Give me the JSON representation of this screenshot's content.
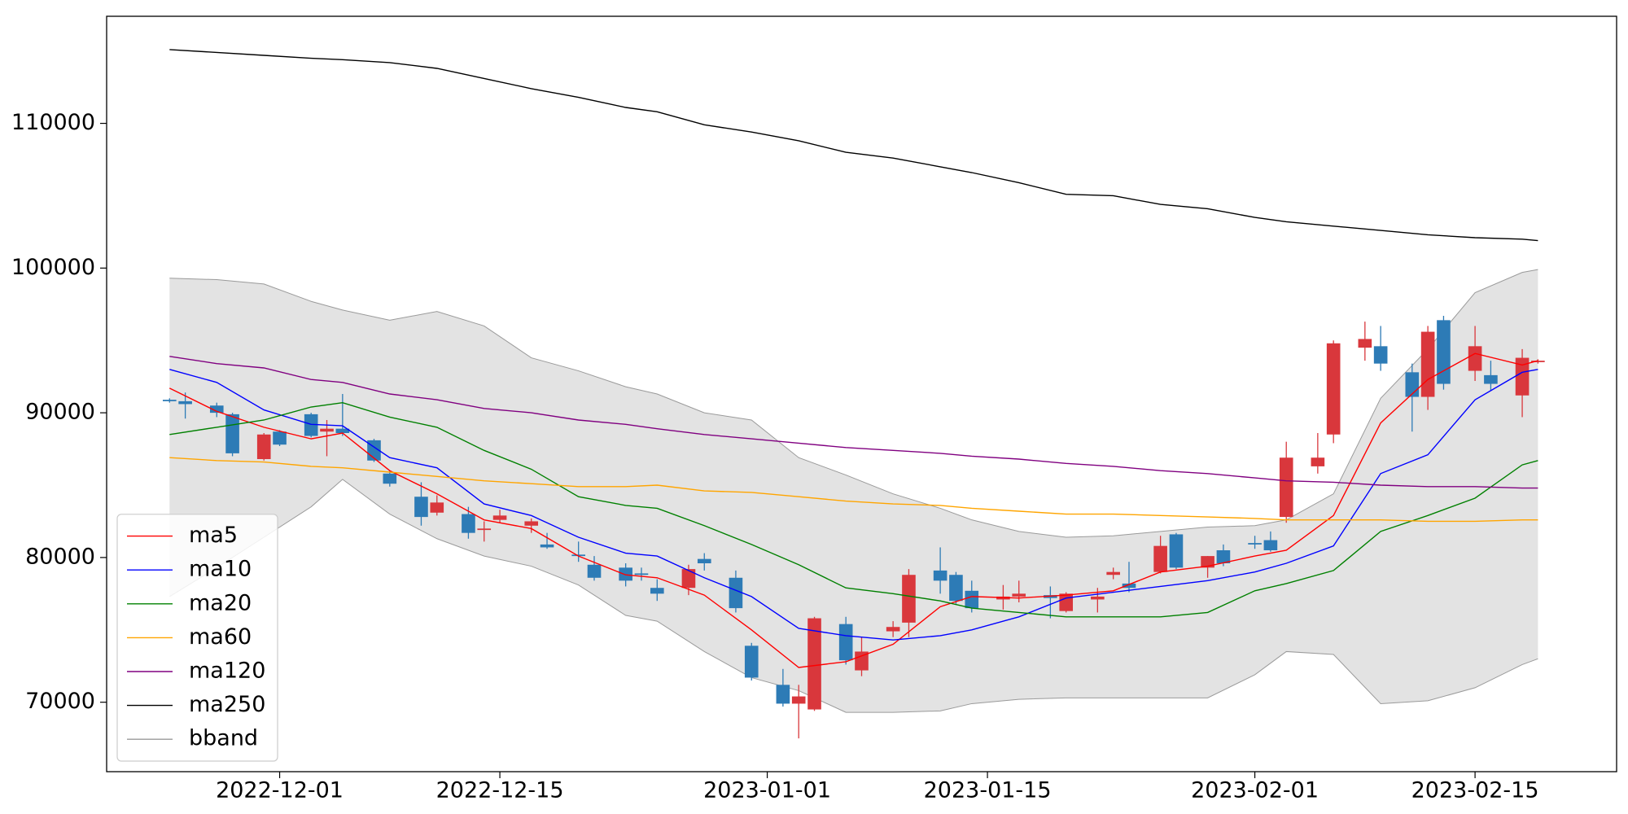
{
  "chart_data": {
    "type": "candlestick",
    "x": [
      "2022-11-24",
      "2022-11-25",
      "2022-11-27",
      "2022-11-28",
      "2022-11-30",
      "2022-12-01",
      "2022-12-03",
      "2022-12-04",
      "2022-12-05",
      "2022-12-07",
      "2022-12-08",
      "2022-12-10",
      "2022-12-11",
      "2022-12-13",
      "2022-12-14",
      "2022-12-15",
      "2022-12-17",
      "2022-12-18",
      "2022-12-20",
      "2022-12-21",
      "2022-12-23",
      "2022-12-24",
      "2022-12-25",
      "2022-12-27",
      "2022-12-28",
      "2022-12-30",
      "2022-12-31",
      "2023-01-02",
      "2023-01-03",
      "2023-01-04",
      "2023-01-06",
      "2023-01-07",
      "2023-01-09",
      "2023-01-10",
      "2023-01-12",
      "2023-01-13",
      "2023-01-14",
      "2023-01-16",
      "2023-01-17",
      "2023-01-19",
      "2023-01-20",
      "2023-01-22",
      "2023-01-23",
      "2023-01-24",
      "2023-01-26",
      "2023-01-27",
      "2023-01-29",
      "2023-01-30",
      "2023-02-01",
      "2023-02-02",
      "2023-02-03",
      "2023-02-05",
      "2023-02-06",
      "2023-02-08",
      "2023-02-09",
      "2023-02-11",
      "2023-02-12",
      "2023-02-13",
      "2023-02-15",
      "2023-02-16",
      "2023-02-18",
      "2023-02-19"
    ],
    "open": [
      90900,
      90800,
      90500,
      89900,
      86800,
      88700,
      89900,
      88700,
      88900,
      88100,
      85800,
      84200,
      83100,
      83000,
      81900,
      82600,
      82200,
      80900,
      80200,
      79500,
      79300,
      78900,
      77900,
      77900,
      79900,
      78600,
      73900,
      71200,
      69900,
      69500,
      75400,
      72200,
      74900,
      75500,
      79100,
      78800,
      77700,
      77100,
      77300,
      77400,
      76300,
      77100,
      78800,
      78200,
      79000,
      81600,
      79300,
      80500,
      81000,
      81200,
      82800,
      86300,
      88500,
      94500,
      94600,
      92800,
      91100,
      96400,
      92900,
      92600,
      91200,
      93500
    ],
    "high": [
      91000,
      91400,
      90700,
      90000,
      88600,
      88800,
      90000,
      89500,
      91300,
      88200,
      86000,
      85200,
      84300,
      83500,
      82500,
      83300,
      82700,
      81700,
      81100,
      80100,
      79600,
      79300,
      78500,
      79500,
      80300,
      79100,
      74100,
      72300,
      71200,
      75900,
      75900,
      74500,
      75600,
      79200,
      80700,
      79000,
      78400,
      78100,
      78400,
      78000,
      77600,
      77900,
      79300,
      79700,
      81500,
      81700,
      80100,
      80900,
      81500,
      81800,
      88000,
      88600,
      95000,
      96300,
      96000,
      93400,
      96000,
      96700,
      96000,
      93600,
      94400,
      93700
    ],
    "low": [
      90700,
      89600,
      89700,
      87000,
      86700,
      87700,
      88300,
      87000,
      88400,
      86600,
      84900,
      82200,
      82900,
      81300,
      81100,
      82400,
      81700,
      80600,
      79700,
      78400,
      78000,
      78400,
      77000,
      77400,
      79100,
      76200,
      71500,
      69700,
      67500,
      69400,
      72600,
      71800,
      74500,
      74500,
      77500,
      76800,
      76200,
      76400,
      76900,
      75800,
      76200,
      76200,
      78500,
      77600,
      78900,
      79200,
      78600,
      79400,
      80600,
      80400,
      82400,
      85800,
      87900,
      93600,
      92900,
      88700,
      90200,
      91600,
      92200,
      91500,
      89700,
      93400
    ],
    "close": [
      90800,
      90600,
      90000,
      87200,
      88500,
      87800,
      88400,
      88900,
      88600,
      86700,
      85100,
      82800,
      83800,
      81700,
      82000,
      82900,
      82500,
      80700,
      80100,
      78600,
      78400,
      78800,
      77500,
      79200,
      79600,
      76500,
      71700,
      69900,
      70400,
      75800,
      72900,
      73500,
      75200,
      78800,
      78400,
      77000,
      76500,
      77300,
      77500,
      77200,
      77500,
      77300,
      79000,
      77900,
      80800,
      79300,
      80100,
      79600,
      80900,
      80500,
      86900,
      86900,
      94800,
      95100,
      93400,
      91100,
      95600,
      92000,
      94600,
      92000,
      93800,
      93600
    ],
    "up_color": "#d9373c",
    "down_color": "#2d7bb6",
    "lines": {
      "x": [
        "2022-11-24",
        "2022-11-27",
        "2022-11-30",
        "2022-12-03",
        "2022-12-05",
        "2022-12-08",
        "2022-12-11",
        "2022-12-14",
        "2022-12-17",
        "2022-12-20",
        "2022-12-23",
        "2022-12-25",
        "2022-12-28",
        "2022-12-31",
        "2023-01-03",
        "2023-01-06",
        "2023-01-09",
        "2023-01-12",
        "2023-01-14",
        "2023-01-17",
        "2023-01-20",
        "2023-01-23",
        "2023-01-26",
        "2023-01-29",
        "2023-02-01",
        "2023-02-03",
        "2023-02-06",
        "2023-02-09",
        "2023-02-12",
        "2023-02-15",
        "2023-02-18",
        "2023-02-19"
      ],
      "series": [
        {
          "name": "ma5",
          "color": "#ff0000",
          "values": [
            91700,
            90100,
            89000,
            88200,
            88600,
            86000,
            84400,
            82600,
            82000,
            80100,
            78800,
            78600,
            77400,
            75000,
            72400,
            72800,
            74000,
            76600,
            77300,
            77200,
            77400,
            77700,
            79000,
            79400,
            80100,
            80500,
            82900,
            89300,
            92300,
            94100,
            93300,
            93600
          ]
        },
        {
          "name": "ma10",
          "color": "#0000ff",
          "values": [
            93000,
            92100,
            90200,
            89200,
            89100,
            86900,
            86200,
            83700,
            82900,
            81400,
            80300,
            80100,
            78600,
            77300,
            75100,
            74600,
            74300,
            74600,
            75000,
            75900,
            77200,
            77600,
            78000,
            78400,
            79000,
            79600,
            80800,
            85800,
            87100,
            90900,
            92800,
            93000
          ]
        },
        {
          "name": "ma20",
          "color": "#008000",
          "values": [
            88500,
            89000,
            89500,
            90400,
            90700,
            89700,
            89000,
            87400,
            86100,
            84200,
            83600,
            83400,
            82200,
            80900,
            79500,
            77900,
            77500,
            77000,
            76500,
            76200,
            75900,
            75900,
            75900,
            76200,
            77700,
            78200,
            79100,
            81800,
            82900,
            84100,
            86400,
            86700
          ]
        },
        {
          "name": "ma60",
          "color": "#ffa500",
          "values": [
            86900,
            86700,
            86600,
            86300,
            86200,
            85900,
            85600,
            85300,
            85100,
            84900,
            84900,
            85000,
            84600,
            84500,
            84200,
            83900,
            83700,
            83600,
            83400,
            83200,
            83000,
            83000,
            82900,
            82800,
            82700,
            82600,
            82600,
            82600,
            82500,
            82500,
            82600,
            82600
          ]
        },
        {
          "name": "ma120",
          "color": "#800080",
          "values": [
            93900,
            93400,
            93100,
            92300,
            92100,
            91300,
            90900,
            90300,
            90000,
            89500,
            89200,
            88900,
            88500,
            88200,
            87900,
            87600,
            87400,
            87200,
            87000,
            86800,
            86500,
            86300,
            86000,
            85800,
            85500,
            85300,
            85200,
            85000,
            84900,
            84900,
            84800,
            84800
          ]
        },
        {
          "name": "ma250",
          "color": "#000000",
          "values": [
            115100,
            114900,
            114700,
            114500,
            114400,
            114200,
            113800,
            113100,
            112400,
            111800,
            111100,
            110800,
            109900,
            109400,
            108800,
            108000,
            107600,
            107000,
            106600,
            105900,
            105100,
            105000,
            104400,
            104100,
            103500,
            103200,
            102900,
            102600,
            102300,
            102100,
            102000,
            101900
          ]
        }
      ],
      "band": {
        "name": "bband",
        "color": "#e3e3e3",
        "edge_color": "#9a9a9a",
        "upper": [
          99300,
          99200,
          98900,
          97700,
          97100,
          96400,
          97000,
          96000,
          93800,
          92900,
          91800,
          91300,
          90000,
          89500,
          86900,
          85700,
          84400,
          83400,
          82600,
          81800,
          81400,
          81500,
          81800,
          82100,
          82200,
          82600,
          84400,
          91000,
          94400,
          98300,
          99700,
          99900
        ],
        "lower": [
          77300,
          79300,
          81400,
          83500,
          85400,
          83000,
          81300,
          80100,
          79400,
          78100,
          76000,
          75600,
          73500,
          71700,
          70800,
          69300,
          69300,
          69400,
          69900,
          70200,
          70300,
          70300,
          70300,
          70300,
          71900,
          73500,
          73300,
          69900,
          70100,
          71000,
          72600,
          73000
        ]
      }
    },
    "xlim": [
      "2022-11-20",
      "2023-02-24"
    ],
    "xticks": [
      "2022-12-01",
      "2022-12-15",
      "2023-01-01",
      "2023-01-15",
      "2023-02-01",
      "2023-02-15"
    ],
    "ylim": [
      65200,
      117400
    ],
    "yticks": [
      70000,
      80000,
      90000,
      100000,
      110000
    ],
    "grid": false,
    "legend": "lower left"
  }
}
